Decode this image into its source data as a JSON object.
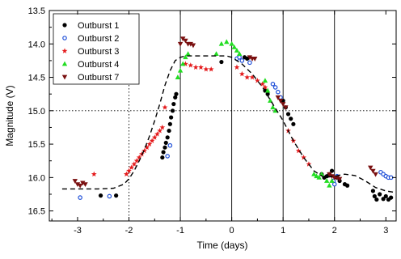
{
  "chart_data": {
    "type": "scatter",
    "title": "",
    "xlabel": "Time (days)",
    "ylabel": "Magnitude (V)",
    "xlim": [
      -3.55,
      3.2
    ],
    "ylim": [
      16.65,
      13.5
    ],
    "y_inverted": true,
    "xticks": [
      -3,
      -2,
      -1,
      0,
      1,
      2,
      3
    ],
    "xtick_labels": [
      "-3",
      "-2",
      "-1",
      "0",
      "1",
      "2",
      "3"
    ],
    "yticks": [
      13.5,
      14.0,
      14.5,
      15.0,
      15.5,
      16.0,
      16.5
    ],
    "ytick_labels": [
      "13.5",
      "14.0",
      "14.5",
      "15.0",
      "15.5",
      "16.0",
      "16.5"
    ],
    "reference_lines": {
      "vertical_solid_x": [
        -1,
        0,
        1,
        2
      ],
      "vertical_dotted_x": [
        -2
      ],
      "horizontal_dotted_y": [
        15.0
      ]
    },
    "legend": {
      "placement": "top-left",
      "frame": true
    },
    "series": [
      {
        "name": "Outburst 1",
        "color": "#000000",
        "marker": "circle",
        "x": [
          -2.55,
          -2.25,
          -1.35,
          -1.33,
          -1.3,
          -1.28,
          -1.25,
          -1.22,
          -1.2,
          -1.18,
          -1.15,
          -1.13,
          -1.1,
          -1.08,
          -0.2,
          0.25,
          0.3,
          0.65,
          0.7,
          1.0,
          1.05,
          1.1,
          1.15,
          1.2,
          1.75,
          1.8,
          1.85,
          1.9,
          1.95,
          2.05,
          2.1,
          2.2,
          2.25,
          2.75,
          2.78,
          2.82,
          2.88,
          2.95,
          3.0,
          3.05,
          3.1
        ],
        "y": [
          16.27,
          16.27,
          15.7,
          15.62,
          15.55,
          15.48,
          15.4,
          15.3,
          15.2,
          15.1,
          15.0,
          14.9,
          14.8,
          14.75,
          14.27,
          14.2,
          14.22,
          14.7,
          14.75,
          14.85,
          14.95,
          15.05,
          15.12,
          15.2,
          15.95,
          16.0,
          15.98,
          15.95,
          15.9,
          16.0,
          16.05,
          16.1,
          16.12,
          16.2,
          16.28,
          16.33,
          16.25,
          16.32,
          16.28,
          16.33,
          16.3
        ]
      },
      {
        "name": "Outburst 2",
        "color": "#1f4fd8",
        "marker": "open-circle",
        "x": [
          -2.95,
          -2.38,
          -1.25,
          -1.2,
          0.1,
          0.15,
          0.2,
          0.35,
          0.8,
          0.85,
          0.9,
          0.95,
          1.98,
          2.0,
          2.05,
          2.9,
          2.95,
          3.0,
          3.05,
          3.1
        ],
        "y": [
          16.3,
          16.28,
          15.68,
          15.52,
          14.22,
          14.2,
          14.25,
          14.28,
          14.6,
          14.65,
          14.72,
          14.8,
          16.05,
          16.1,
          15.98,
          15.92,
          15.95,
          15.98,
          16.0,
          16.0
        ]
      },
      {
        "name": "Outburst 3",
        "color": "#e41a1c",
        "marker": "star",
        "x": [
          -2.68,
          -2.05,
          -2.0,
          -1.95,
          -1.9,
          -1.85,
          -1.8,
          -1.75,
          -1.7,
          -1.65,
          -1.6,
          -1.55,
          -1.5,
          -1.45,
          -1.4,
          -1.35,
          -1.3,
          -0.9,
          -0.8,
          -0.7,
          -0.6,
          -0.5,
          -0.4,
          0.1,
          0.2,
          0.3,
          0.4,
          0.5,
          0.6,
          0.65,
          1.1,
          1.2,
          1.3,
          1.4,
          1.5
        ],
        "y": [
          15.95,
          15.95,
          15.9,
          15.85,
          15.8,
          15.75,
          15.7,
          15.65,
          15.6,
          15.55,
          15.5,
          15.45,
          15.4,
          15.35,
          15.3,
          15.25,
          14.95,
          14.3,
          14.32,
          14.35,
          14.35,
          14.38,
          14.38,
          14.35,
          14.45,
          14.5,
          14.5,
          14.55,
          14.6,
          14.65,
          15.3,
          15.45,
          15.6,
          15.7,
          15.8
        ]
      },
      {
        "name": "Outburst 4",
        "color": "#22dd22",
        "marker": "triangle",
        "x": [
          -1.05,
          -1.0,
          -0.95,
          -0.9,
          -0.85,
          -0.3,
          -0.2,
          -0.1,
          0.0,
          0.05,
          0.1,
          0.15,
          0.65,
          0.7,
          0.75,
          0.8,
          0.85,
          1.6,
          1.65,
          1.7,
          1.75,
          1.85,
          1.9,
          1.95
        ],
        "y": [
          14.5,
          14.4,
          14.3,
          14.2,
          14.15,
          14.15,
          14.0,
          13.97,
          14.0,
          14.05,
          14.1,
          14.15,
          14.55,
          14.7,
          14.85,
          14.95,
          15.0,
          15.95,
          15.98,
          16.0,
          15.95,
          16.05,
          16.12,
          16.05
        ]
      },
      {
        "name": "Outburst 7",
        "color": "#7a1010",
        "marker": "inverted-triangle",
        "x": [
          -3.05,
          -3.0,
          -2.95,
          -2.9,
          -2.85,
          -1.0,
          -0.95,
          -0.9,
          -0.85,
          -0.8,
          -0.75,
          0.35,
          0.4,
          0.45,
          0.9,
          0.95,
          1.0,
          1.05,
          1.9,
          1.95,
          2.0,
          2.05,
          2.1,
          2.7,
          2.75,
          2.8
        ],
        "y": [
          16.05,
          16.1,
          16.12,
          16.08,
          16.1,
          14.0,
          13.92,
          13.95,
          14.0,
          14.0,
          14.02,
          14.2,
          14.22,
          14.22,
          14.8,
          14.85,
          14.9,
          14.95,
          15.95,
          15.98,
          16.0,
          16.0,
          16.02,
          15.85,
          15.9,
          15.95
        ]
      }
    ],
    "model_curve": {
      "style": "dashed",
      "color": "#000000",
      "x": [
        -3.3,
        -3.0,
        -2.6,
        -2.3,
        -2.1,
        -2.0,
        -1.9,
        -1.8,
        -1.7,
        -1.6,
        -1.5,
        -1.4,
        -1.3,
        -1.2,
        -1.1,
        -1.0,
        -0.9,
        -0.7,
        -0.5,
        -0.3,
        -0.1,
        0.0,
        0.2,
        0.4,
        0.6,
        0.8,
        1.0,
        1.2,
        1.4,
        1.6,
        1.8,
        2.0,
        2.2,
        2.4,
        2.6,
        2.8,
        3.0,
        3.15
      ],
      "y": [
        16.17,
        16.17,
        16.17,
        16.16,
        16.1,
        16.02,
        15.9,
        15.75,
        15.58,
        15.38,
        15.15,
        14.9,
        14.62,
        14.4,
        14.25,
        14.2,
        14.18,
        14.18,
        14.18,
        14.18,
        14.18,
        14.2,
        14.3,
        14.45,
        14.65,
        14.9,
        15.15,
        15.45,
        15.7,
        15.9,
        16.0,
        15.98,
        15.95,
        15.97,
        16.05,
        16.15,
        16.2,
        16.22
      ]
    }
  }
}
